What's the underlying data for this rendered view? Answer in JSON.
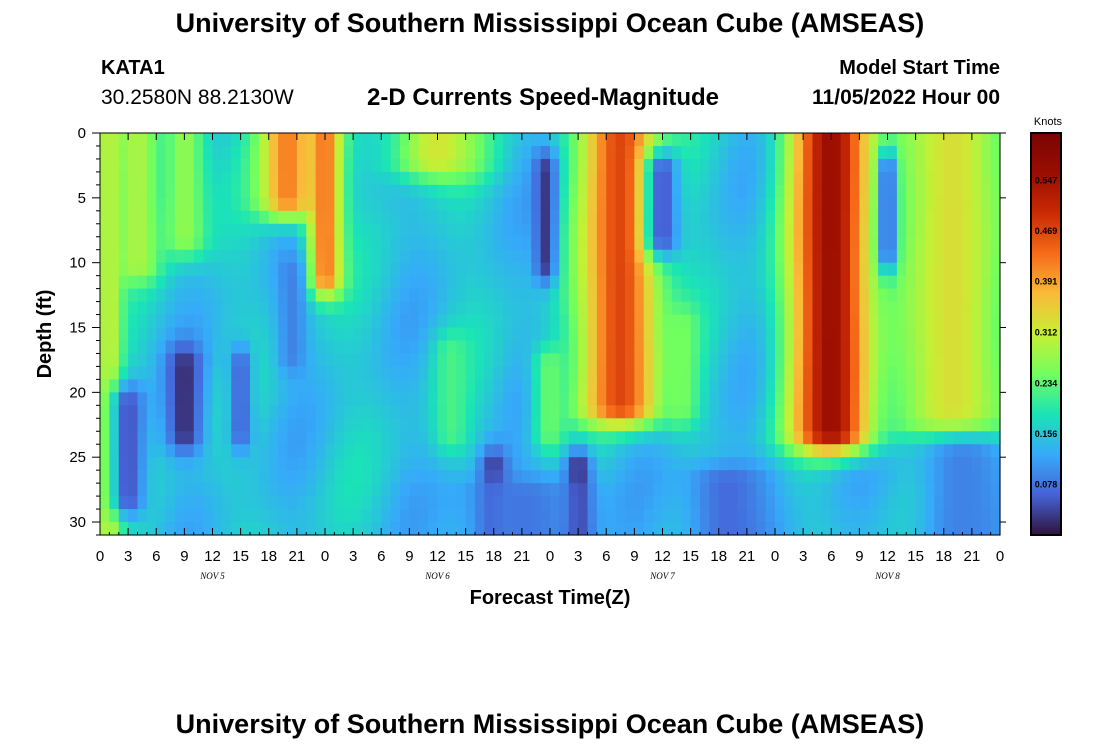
{
  "header": {
    "title": "University of Southern Mississippi Ocean Cube (AMSEAS)",
    "station_id": "KATA1",
    "coordinates": "30.2580N  88.2130W",
    "subtitle": "2-D Currents Speed-Magnitude",
    "model_start_label": "Model Start Time",
    "model_start_value": "11/05/2022 Hour 00"
  },
  "footer": {
    "title": "University of Southern Mississippi Ocean Cube (AMSEAS)"
  },
  "chart_data": {
    "type": "heatmap",
    "title": "2-D Currents Speed-Magnitude",
    "xlabel": "Forecast Time(Z)",
    "ylabel": "Depth (ft)",
    "x_range_hours": [
      0,
      96
    ],
    "x_ticks": [
      {
        "hour": 0,
        "label": "0"
      },
      {
        "hour": 3,
        "label": "3"
      },
      {
        "hour": 6,
        "label": "6"
      },
      {
        "hour": 9,
        "label": "9"
      },
      {
        "hour": 12,
        "label": "12"
      },
      {
        "hour": 15,
        "label": "15"
      },
      {
        "hour": 18,
        "label": "18"
      },
      {
        "hour": 21,
        "label": "21"
      },
      {
        "hour": 24,
        "label": "0"
      },
      {
        "hour": 27,
        "label": "3"
      },
      {
        "hour": 30,
        "label": "6"
      },
      {
        "hour": 33,
        "label": "9"
      },
      {
        "hour": 36,
        "label": "12"
      },
      {
        "hour": 39,
        "label": "15"
      },
      {
        "hour": 42,
        "label": "18"
      },
      {
        "hour": 45,
        "label": "21"
      },
      {
        "hour": 48,
        "label": "0"
      },
      {
        "hour": 51,
        "label": "3"
      },
      {
        "hour": 54,
        "label": "6"
      },
      {
        "hour": 57,
        "label": "9"
      },
      {
        "hour": 60,
        "label": "12"
      },
      {
        "hour": 63,
        "label": "15"
      },
      {
        "hour": 66,
        "label": "18"
      },
      {
        "hour": 69,
        "label": "21"
      },
      {
        "hour": 72,
        "label": "0"
      },
      {
        "hour": 75,
        "label": "3"
      },
      {
        "hour": 78,
        "label": "6"
      },
      {
        "hour": 81,
        "label": "9"
      },
      {
        "hour": 84,
        "label": "12"
      },
      {
        "hour": 87,
        "label": "15"
      },
      {
        "hour": 90,
        "label": "18"
      },
      {
        "hour": 93,
        "label": "21"
      },
      {
        "hour": 96,
        "label": "0"
      }
    ],
    "day_labels": [
      {
        "hour": 12,
        "label": "NOV 5"
      },
      {
        "hour": 36,
        "label": "NOV 6"
      },
      {
        "hour": 60,
        "label": "NOV 7"
      },
      {
        "hour": 84,
        "label": "NOV 8"
      }
    ],
    "y_range_ft": [
      0,
      31
    ],
    "y_ticks": [
      0,
      5,
      10,
      15,
      20,
      25,
      30
    ],
    "colorbar": {
      "unit": "Knots",
      "min": 0.0,
      "max": 0.62,
      "tick_values": [
        0.078,
        0.156,
        0.234,
        0.312,
        0.391,
        0.469,
        0.547
      ],
      "tick_labels": [
        "0.078",
        "0.156",
        "0.234",
        "0.312",
        "0.391",
        "0.469",
        "0.547"
      ]
    },
    "speed_features": [
      {
        "hour_center": 1,
        "hour_width": 2.2,
        "depth_top": 0,
        "depth_bottom": 31,
        "value": 0.31
      },
      {
        "hour_center": 4,
        "hour_width": 4,
        "depth_top": 0,
        "depth_bottom": 10,
        "value": 0.29
      },
      {
        "hour_center": 9,
        "hour_width": 4,
        "depth_top": 0,
        "depth_bottom": 8,
        "value": 0.27
      },
      {
        "hour_center": 20,
        "hour_width": 5,
        "depth_top": 0,
        "depth_bottom": 5,
        "value": 0.42
      },
      {
        "hour_center": 24,
        "hour_width": 3,
        "depth_top": 0,
        "depth_bottom": 11,
        "value": 0.43
      },
      {
        "hour_center": 36,
        "hour_width": 8,
        "depth_top": 0,
        "depth_bottom": 2,
        "value": 0.32
      },
      {
        "hour_center": 55.5,
        "hour_width": 7,
        "depth_top": 0,
        "depth_bottom": 21,
        "value": 0.47
      },
      {
        "hour_center": 78,
        "hour_width": 7,
        "depth_top": 0,
        "depth_bottom": 23,
        "value": 0.56
      },
      {
        "hour_center": 91,
        "hour_width": 10,
        "depth_top": 0,
        "depth_bottom": 22,
        "value": 0.33
      },
      {
        "hour_center": 37.5,
        "hour_width": 3,
        "depth_top": 17,
        "depth_bottom": 23,
        "value": 0.22
      },
      {
        "hour_center": 48,
        "hour_width": 3,
        "depth_top": 18,
        "depth_bottom": 23,
        "value": 0.24
      },
      {
        "hour_center": 62,
        "hour_width": 3,
        "depth_top": 15,
        "depth_bottom": 21,
        "value": 0.25
      },
      {
        "hour_center": 9,
        "hour_width": 3,
        "depth_top": 18,
        "depth_bottom": 23,
        "value": 0.02
      },
      {
        "hour_center": 3,
        "hour_width": 3,
        "depth_top": 21,
        "depth_bottom": 28,
        "value": 0.05
      },
      {
        "hour_center": 15,
        "hour_width": 2,
        "depth_top": 18,
        "depth_bottom": 23,
        "value": 0.06
      },
      {
        "hour_center": 20.5,
        "hour_width": 2.5,
        "depth_top": 11,
        "depth_bottom": 17,
        "value": 0.09
      },
      {
        "hour_center": 47.5,
        "hour_width": 2,
        "depth_top": 3,
        "depth_bottom": 10,
        "value": 0.03
      },
      {
        "hour_center": 60,
        "hour_width": 3,
        "depth_top": 3,
        "depth_bottom": 8,
        "value": 0.05
      },
      {
        "hour_center": 84,
        "hour_width": 1.5,
        "depth_top": 3,
        "depth_bottom": 9,
        "value": 0.05
      },
      {
        "hour_center": 42,
        "hour_width": 2.5,
        "depth_top": 26,
        "depth_bottom": 31,
        "value": 0.02
      },
      {
        "hour_center": 51,
        "hour_width": 2.5,
        "depth_top": 26,
        "depth_bottom": 31,
        "value": 0.01
      },
      {
        "hour_center": 45,
        "hour_width": 12,
        "depth_top": 28,
        "depth_bottom": 31,
        "value": 0.08
      },
      {
        "hour_center": 67,
        "hour_width": 8,
        "depth_top": 27,
        "depth_bottom": 31,
        "value": 0.07
      },
      {
        "hour_center": 92,
        "hour_width": 8,
        "depth_top": 25,
        "depth_bottom": 31,
        "value": 0.09
      }
    ]
  }
}
